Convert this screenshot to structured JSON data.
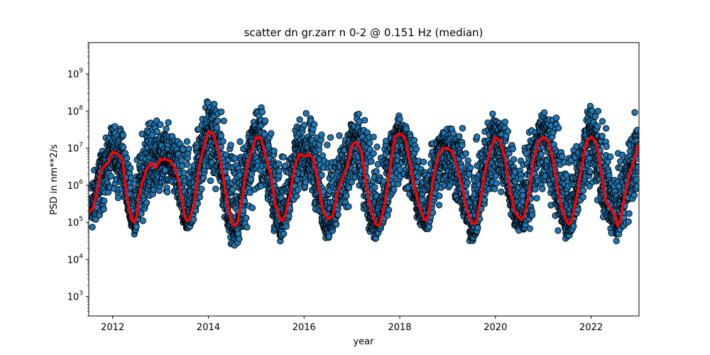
{
  "chart_data": {
    "type": "scatter",
    "title": "scatter dn gr.zarr n 0-2 @ 0.151 Hz (median)",
    "xlabel": "year",
    "ylabel": "PSD in nm**2/s",
    "xlim": [
      2011.5,
      2023.0
    ],
    "ylim": [
      300,
      7000000000
    ],
    "yscale": "log",
    "grid": false,
    "x_ticks": [
      2012,
      2014,
      2016,
      2018,
      2020,
      2022
    ],
    "y_ticks": [
      {
        "value": 1000,
        "base": "10",
        "exp": "3"
      },
      {
        "value": 10000,
        "base": "10",
        "exp": "4"
      },
      {
        "value": 100000,
        "base": "10",
        "exp": "5"
      },
      {
        "value": 1000000,
        "base": "10",
        "exp": "6"
      },
      {
        "value": 10000000,
        "base": "10",
        "exp": "7"
      },
      {
        "value": 100000000,
        "base": "10",
        "exp": "8"
      },
      {
        "value": 1000000000,
        "base": "10",
        "exp": "9"
      }
    ],
    "series": [
      {
        "kind": "scatter",
        "color": "#1f77b4",
        "edgecolor": "#000000",
        "description_note": "dense daily PSD scatter; values reconstructed from visible envelope",
        "envelope": {
          "x": [
            2011.5,
            2011.75,
            2012.0,
            2012.25,
            2012.5,
            2012.75,
            2013.0,
            2013.25,
            2013.5,
            2013.75,
            2014.0,
            2014.25,
            2014.5,
            2014.75,
            2015.0,
            2015.25,
            2015.5,
            2015.75,
            2016.0,
            2016.25,
            2016.5,
            2016.75,
            2017.0,
            2017.25,
            2017.5,
            2017.75,
            2018.0,
            2018.25,
            2018.5,
            2018.75,
            2019.0,
            2019.25,
            2019.5,
            2019.75,
            2020.0,
            2020.25,
            2020.5,
            2020.75,
            2021.0,
            2021.25,
            2021.5,
            2021.75,
            2022.0,
            2022.25,
            2022.5,
            2022.75,
            2023.0
          ],
          "low": [
            30000,
            60000,
            500000,
            300000,
            25000,
            200000,
            500000,
            400000,
            30000,
            80000,
            1000000,
            200000,
            15000,
            20000,
            300000,
            100000,
            15000,
            150000,
            500000,
            100000,
            20000,
            60000,
            200000,
            50000,
            20000,
            100000,
            500000,
            200000,
            40000,
            60000,
            300000,
            100000,
            15000,
            100000,
            300000,
            200000,
            30000,
            50000,
            200000,
            60000,
            25000,
            100000,
            300000,
            100000,
            25000,
            30000,
            300000
          ],
          "high": [
            3000000,
            10000000,
            70000000,
            50000000,
            10000000,
            300000000,
            100000000,
            60000000,
            30000000,
            100000000,
            500000000,
            200000000,
            50000000,
            30000000,
            300000000,
            100000000,
            20000000,
            30000000,
            200000000,
            100000000,
            50000000,
            40000000,
            200000000,
            100000000,
            50000000,
            50000000,
            100000000,
            80000000,
            20000000,
            30000000,
            100000000,
            100000000,
            20000000,
            100000000,
            200000000,
            150000000,
            50000000,
            40000000,
            150000000,
            200000000,
            40000000,
            50000000,
            200000000,
            300000000,
            50000000,
            30000000,
            200000000
          ]
        }
      },
      {
        "kind": "line",
        "color": "#ff0000",
        "x": [
          2011.5,
          2011.6,
          2011.7,
          2011.75,
          2011.8,
          2011.9,
          2012.0,
          2012.1,
          2012.2,
          2012.3,
          2012.35,
          2012.4,
          2012.45,
          2012.5,
          2012.55,
          2012.6,
          2012.7,
          2012.8,
          2012.9,
          2013.0,
          2013.1,
          2013.2,
          2013.3,
          2013.4,
          2013.5,
          2013.55,
          2013.6,
          2013.7,
          2013.8,
          2013.9,
          2014.0,
          2014.1,
          2014.2,
          2014.3,
          2014.4,
          2014.5,
          2014.55,
          2014.6,
          2014.7,
          2014.8,
          2014.9,
          2015.0,
          2015.1,
          2015.2,
          2015.3,
          2015.4,
          2015.5,
          2015.55,
          2015.6,
          2015.7,
          2015.8,
          2015.9,
          2016.0,
          2016.1,
          2016.2,
          2016.3,
          2016.4,
          2016.5,
          2016.6,
          2016.7,
          2016.8,
          2016.9,
          2017.0,
          2017.1,
          2017.2,
          2017.3,
          2017.4,
          2017.5,
          2017.55,
          2017.6,
          2017.7,
          2017.8,
          2017.9,
          2018.0,
          2018.1,
          2018.2,
          2018.3,
          2018.4,
          2018.5,
          2018.55,
          2018.6,
          2018.7,
          2018.8,
          2018.9,
          2019.0,
          2019.1,
          2019.2,
          2019.3,
          2019.4,
          2019.5,
          2019.55,
          2019.6,
          2019.7,
          2019.8,
          2019.9,
          2020.0,
          2020.1,
          2020.2,
          2020.3,
          2020.4,
          2020.5,
          2020.55,
          2020.6,
          2020.7,
          2020.8,
          2020.9,
          2021.0,
          2021.1,
          2021.2,
          2021.3,
          2021.4,
          2021.5,
          2021.55,
          2021.6,
          2021.7,
          2021.8,
          2021.9,
          2022.0,
          2022.1,
          2022.2,
          2022.3,
          2022.4,
          2022.5,
          2022.55,
          2022.6,
          2022.7,
          2022.8,
          2022.9,
          2023.0
        ],
        "y": [
          180000,
          250000,
          1000000,
          2500000,
          3000000,
          4000000,
          8000000,
          7000000,
          5000000,
          500000,
          200000,
          120000,
          100000,
          150000,
          500000,
          1000000,
          2500000,
          4000000,
          3000000,
          5000000,
          5000000,
          4500000,
          3000000,
          1000000,
          150000,
          110000,
          120000,
          300000,
          3000000,
          10000000,
          28000000,
          25000000,
          10000000,
          2000000,
          300000,
          90000,
          80000,
          90000,
          400000,
          3000000,
          8000000,
          20000000,
          18000000,
          6000000,
          2000000,
          300000,
          120000,
          110000,
          150000,
          500000,
          3000000,
          7000000,
          6000000,
          7000000,
          5000000,
          1000000,
          200000,
          120000,
          150000,
          600000,
          1500000,
          3000000,
          12000000,
          15000000,
          8000000,
          1000000,
          200000,
          90000,
          80000,
          100000,
          400000,
          3000000,
          20000000,
          25000000,
          20000000,
          5000000,
          1000000,
          300000,
          130000,
          110000,
          150000,
          1500000,
          6000000,
          10000000,
          10000000,
          8000000,
          3000000,
          1000000,
          200000,
          100000,
          90000,
          100000,
          500000,
          3000000,
          10000000,
          20000000,
          15000000,
          5000000,
          800000,
          200000,
          130000,
          120000,
          150000,
          600000,
          5000000,
          15000000,
          20000000,
          15000000,
          5000000,
          800000,
          200000,
          100000,
          90000,
          120000,
          500000,
          3000000,
          15000000,
          20000000,
          15000000,
          3000000,
          400000,
          250000,
          150000,
          80000,
          100000,
          500000,
          2000000,
          5000000,
          14000000
        ]
      }
    ]
  }
}
